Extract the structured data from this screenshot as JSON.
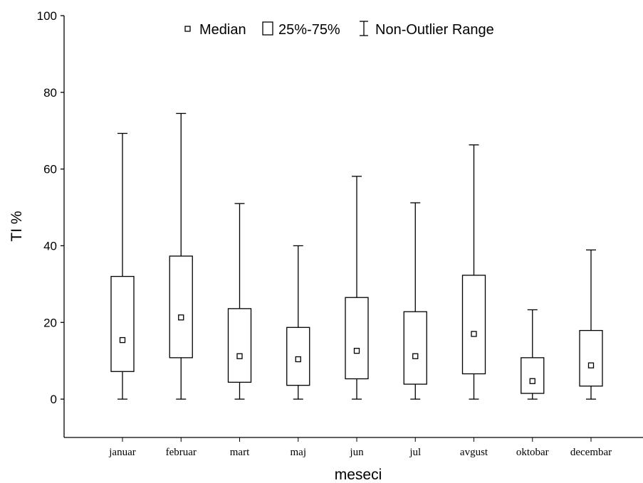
{
  "chart_data": {
    "type": "box",
    "xlabel": "meseci",
    "ylabel": "TI %",
    "ylim": [
      -10,
      100
    ],
    "yticks": [
      0,
      20,
      40,
      60,
      80,
      100
    ],
    "grid": false,
    "legend_position": "top-center",
    "legend": {
      "median": "Median",
      "box": "25%-75%",
      "whisker": "Non-Outlier Range"
    },
    "categories": [
      "januar",
      "februar",
      "mart",
      "maj",
      "jun",
      "jul",
      "avgust",
      "oktobar",
      "decembar"
    ],
    "boxes": [
      {
        "category": "januar",
        "min": 0,
        "q1": 7.2,
        "median": 15.4,
        "q3": 32.0,
        "max": 69.3
      },
      {
        "category": "februar",
        "min": 0,
        "q1": 10.8,
        "median": 21.3,
        "q3": 37.3,
        "max": 74.5
      },
      {
        "category": "mart",
        "min": 0,
        "q1": 4.4,
        "median": 11.2,
        "q3": 23.6,
        "max": 51.0
      },
      {
        "category": "maj",
        "min": 0,
        "q1": 3.6,
        "median": 10.4,
        "q3": 18.7,
        "max": 40.0
      },
      {
        "category": "jun",
        "min": 0,
        "q1": 5.3,
        "median": 12.6,
        "q3": 26.5,
        "max": 58.1
      },
      {
        "category": "jul",
        "min": 0,
        "q1": 3.9,
        "median": 11.2,
        "q3": 22.8,
        "max": 51.2
      },
      {
        "category": "avgust",
        "min": 0,
        "q1": 6.6,
        "median": 17.0,
        "q3": 32.3,
        "max": 66.3
      },
      {
        "category": "oktobar",
        "min": 0,
        "q1": 1.5,
        "median": 4.7,
        "q3": 10.8,
        "max": 23.3
      },
      {
        "category": "decembar",
        "min": 0,
        "q1": 3.4,
        "median": 8.8,
        "q3": 17.9,
        "max": 38.9
      }
    ]
  }
}
